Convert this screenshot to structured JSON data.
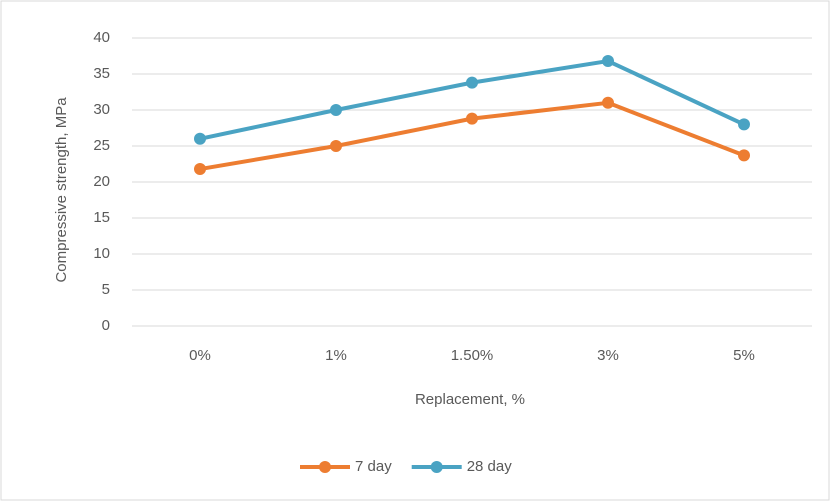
{
  "chart_data": {
    "type": "line",
    "x_label": "Replacement, %",
    "y_label": "Compressive strength, MPa",
    "categories": [
      "0%",
      "1%",
      "1.50%",
      "3%",
      "5%"
    ],
    "series": [
      {
        "name": "7 day",
        "color": "#ed7d31",
        "values": [
          21.8,
          25,
          28.8,
          31,
          23.7
        ]
      },
      {
        "name": "28 day",
        "color": "#4aa3c3",
        "values": [
          26,
          30,
          33.8,
          36.8,
          28
        ]
      }
    ],
    "ylim": [
      0,
      40
    ],
    "yticks": [
      0,
      5,
      10,
      15,
      20,
      25,
      30,
      35,
      40
    ],
    "grid": true,
    "legend": "bottom"
  }
}
